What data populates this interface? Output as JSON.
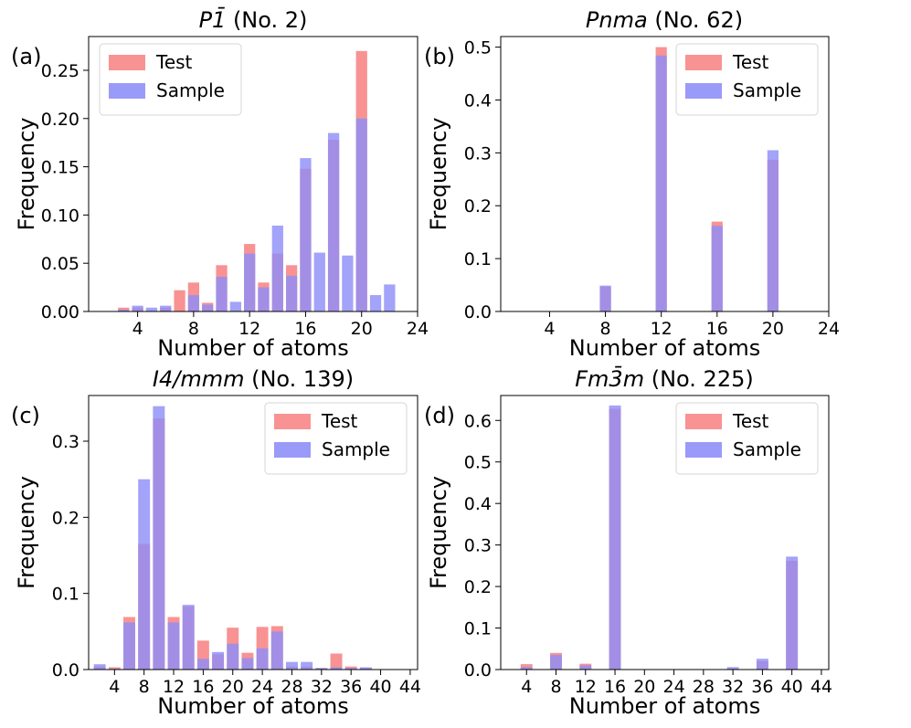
{
  "colors": {
    "test": "#f88686",
    "sample": "#8f8ff8",
    "frame": "#000000"
  },
  "legend": {
    "test_label": "Test",
    "sample_label": "Sample",
    "placement": "top-right"
  },
  "chart_data": [
    {
      "panel": "(a)",
      "type": "bar",
      "title_main": "P1̄",
      "title_sub": " (No. 2)",
      "xlabel": "Number of atoms",
      "ylabel": "Frequency",
      "xlim": [
        0.5,
        24
      ],
      "ylim": [
        0,
        0.285
      ],
      "xticks": [
        4,
        8,
        12,
        16,
        20,
        24
      ],
      "yticks": [
        0.0,
        0.05,
        0.1,
        0.15,
        0.2,
        0.25
      ],
      "ytick_labels": [
        "0.00",
        "0.05",
        "0.10",
        "0.15",
        "0.20",
        "0.25"
      ],
      "legend_placement": "top-left",
      "bar_width": 0.8,
      "series": [
        {
          "name": "Test",
          "x": [
            3,
            4,
            6,
            7,
            8,
            9,
            10,
            12,
            13,
            14,
            15,
            16,
            18,
            20
          ],
          "values": [
            0.004,
            0.004,
            0.004,
            0.022,
            0.03,
            0.009,
            0.048,
            0.07,
            0.03,
            0.06,
            0.048,
            0.148,
            0.178,
            0.27
          ]
        },
        {
          "name": "Sample",
          "x": [
            3,
            4,
            5,
            6,
            8,
            9,
            10,
            11,
            12,
            13,
            14,
            15,
            16,
            17,
            18,
            19,
            20,
            21,
            22
          ],
          "values": [
            0.002,
            0.006,
            0.004,
            0.006,
            0.017,
            0.007,
            0.036,
            0.01,
            0.06,
            0.025,
            0.089,
            0.037,
            0.159,
            0.061,
            0.185,
            0.058,
            0.2,
            0.017,
            0.028
          ]
        }
      ]
    },
    {
      "panel": "(b)",
      "type": "bar",
      "title_main": "Pnma",
      "title_sub": " (No. 62)",
      "xlabel": "Number of atoms",
      "ylabel": "Frequency",
      "xlim": [
        0.5,
        24
      ],
      "ylim": [
        0,
        0.52
      ],
      "xticks": [
        4,
        8,
        12,
        16,
        20,
        24
      ],
      "yticks": [
        0.0,
        0.1,
        0.2,
        0.3,
        0.4,
        0.5
      ],
      "ytick_labels": [
        "0.0",
        "0.1",
        "0.2",
        "0.3",
        "0.4",
        "0.5"
      ],
      "legend_placement": "top-right",
      "bar_width": 0.8,
      "series": [
        {
          "name": "Test",
          "x": [
            8,
            12,
            16,
            20
          ],
          "values": [
            0.047,
            0.5,
            0.17,
            0.287
          ]
        },
        {
          "name": "Sample",
          "x": [
            8,
            12,
            16,
            20
          ],
          "values": [
            0.049,
            0.484,
            0.162,
            0.305
          ]
        }
      ]
    },
    {
      "panel": "(c)",
      "type": "bar",
      "title_main": "I4/mmm",
      "title_sub": " (No. 139)",
      "xlabel": "Number of atoms",
      "ylabel": "Frequency",
      "xlim": [
        0.5,
        45
      ],
      "ylim": [
        0,
        0.36
      ],
      "xticks": [
        4,
        8,
        12,
        16,
        20,
        24,
        28,
        32,
        36,
        40,
        44
      ],
      "yticks": [
        0.0,
        0.1,
        0.2,
        0.3
      ],
      "ytick_labels": [
        "0.0",
        "0.1",
        "0.2",
        "0.3"
      ],
      "legend_placement": "top-right",
      "bar_width": 1.6,
      "series": [
        {
          "name": "Test",
          "x": [
            2,
            4,
            6,
            8,
            10,
            12,
            14,
            16,
            18,
            20,
            22,
            24,
            26,
            28,
            30,
            32,
            34,
            36,
            38
          ],
          "values": [
            0.004,
            0.003,
            0.069,
            0.165,
            0.33,
            0.069,
            0.083,
            0.038,
            0.02,
            0.055,
            0.022,
            0.056,
            0.057,
            0.004,
            0.004,
            0.002,
            0.021,
            0.004,
            0.002
          ]
        },
        {
          "name": "Sample",
          "x": [
            2,
            4,
            6,
            8,
            10,
            12,
            14,
            16,
            18,
            20,
            22,
            24,
            26,
            28,
            30,
            32,
            34,
            36,
            38
          ],
          "values": [
            0.007,
            0.001,
            0.062,
            0.25,
            0.346,
            0.062,
            0.085,
            0.014,
            0.023,
            0.034,
            0.015,
            0.028,
            0.05,
            0.01,
            0.01,
            0.002,
            0.003,
            0.002,
            0.003
          ]
        }
      ]
    },
    {
      "panel": "(d)",
      "type": "bar",
      "title_main": "Fm3̄m",
      "title_sub": " (No. 225)",
      "xlabel": "Number of atoms",
      "ylabel": "Frequency",
      "xlim": [
        0.5,
        45
      ],
      "ylim": [
        0,
        0.66
      ],
      "xticks": [
        4,
        8,
        12,
        16,
        20,
        24,
        28,
        32,
        36,
        40,
        44
      ],
      "yticks": [
        0.0,
        0.1,
        0.2,
        0.3,
        0.4,
        0.5,
        0.6
      ],
      "ytick_labels": [
        "0.0",
        "0.1",
        "0.2",
        "0.3",
        "0.4",
        "0.5",
        "0.6"
      ],
      "legend_placement": "top-right",
      "bar_width": 1.6,
      "series": [
        {
          "name": "Test",
          "x": [
            4,
            8,
            12,
            16,
            32,
            36,
            40
          ],
          "values": [
            0.013,
            0.04,
            0.014,
            0.628,
            0.002,
            0.02,
            0.262
          ]
        },
        {
          "name": "Sample",
          "x": [
            4,
            8,
            12,
            16,
            32,
            36,
            40
          ],
          "values": [
            0.006,
            0.035,
            0.01,
            0.636,
            0.006,
            0.026,
            0.272
          ]
        }
      ]
    }
  ]
}
